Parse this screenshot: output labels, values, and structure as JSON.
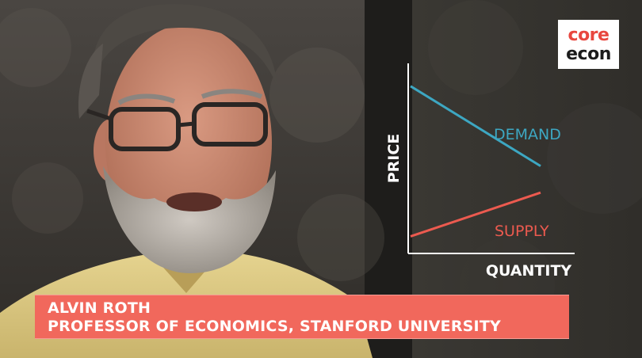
{
  "logo": {
    "line1": "core",
    "line2": "econ"
  },
  "chart_data": {
    "type": "line",
    "title": "",
    "xlabel": "QUANTITY",
    "ylabel": "PRICE",
    "grid": false,
    "series": [
      {
        "name": "DEMAND",
        "color": "#3da7c2",
        "x": [
          0,
          1
        ],
        "y": [
          0.88,
          0.46
        ]
      },
      {
        "name": "SUPPLY",
        "color": "#ec5a4f",
        "x": [
          0,
          1
        ],
        "y": [
          0.09,
          0.32
        ]
      }
    ]
  },
  "caption": {
    "name": "ALVIN ROTH",
    "role": "PROFESSOR OF ECONOMICS, STANFORD UNIVERSITY"
  }
}
